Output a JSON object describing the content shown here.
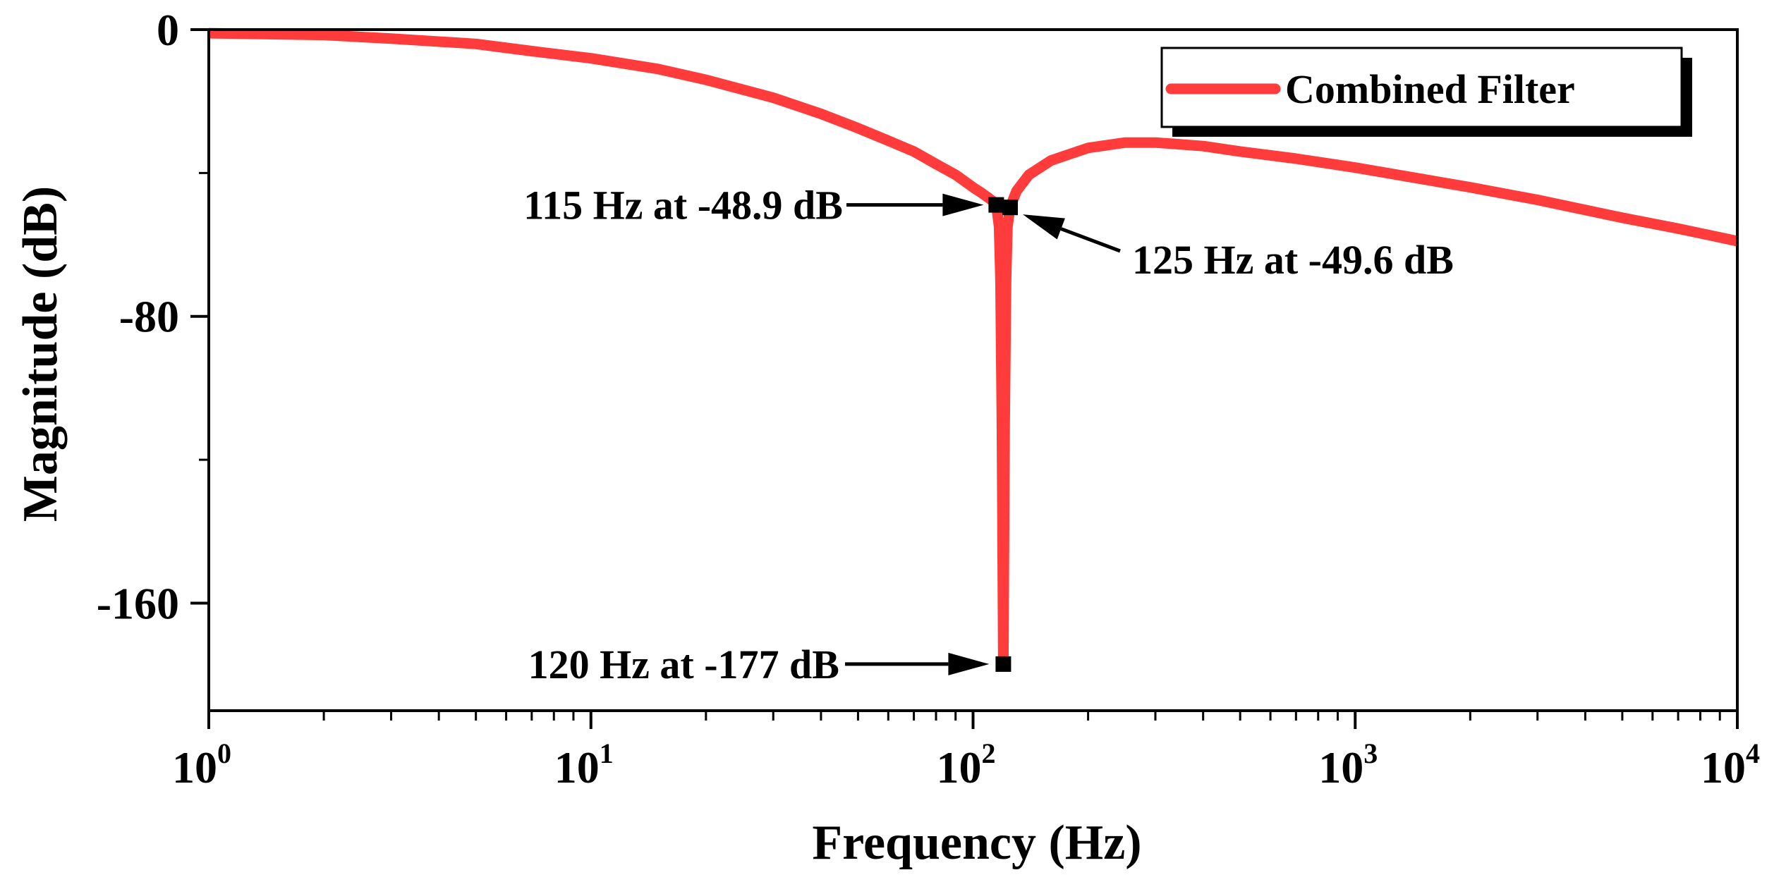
{
  "chart_data": {
    "type": "line",
    "title": "",
    "xlabel": "Frequency (Hz)",
    "ylabel": "Magnitude (dB)",
    "x_scale": "log",
    "xlim": [
      1,
      10000
    ],
    "ylim": [
      -190,
      0
    ],
    "x_ticks": [
      {
        "value": 1,
        "base": "10",
        "exp": "0"
      },
      {
        "value": 10,
        "base": "10",
        "exp": "1"
      },
      {
        "value": 100,
        "base": "10",
        "exp": "2"
      },
      {
        "value": 1000,
        "base": "10",
        "exp": "3"
      },
      {
        "value": 10000,
        "base": "10",
        "exp": "4"
      }
    ],
    "y_ticks": [
      {
        "value": 0,
        "label": "0"
      },
      {
        "value": -80,
        "label": "-80"
      },
      {
        "value": -160,
        "label": "-160"
      }
    ],
    "y_minor_ticks": [
      -40,
      -120
    ],
    "grid": false,
    "legend_position": "top-right",
    "series": [
      {
        "name": "Combined Filter",
        "color": "#ff3b3b",
        "x": [
          1,
          2,
          3,
          5,
          7,
          10,
          15,
          20,
          30,
          40,
          50,
          60,
          70,
          80,
          90,
          100,
          105,
          110,
          113,
          115,
          117,
          118,
          119,
          120,
          121,
          122,
          123,
          125,
          130,
          140,
          160,
          200,
          250,
          300,
          400,
          500,
          700,
          1000,
          2000,
          3000,
          5000,
          7000,
          10000
        ],
        "y": [
          -1,
          -1.5,
          -2.5,
          -4,
          -6,
          -8,
          -11,
          -14,
          -19,
          -23.5,
          -27.5,
          -31,
          -34,
          -37.5,
          -40.5,
          -44,
          -45.5,
          -47,
          -48,
          -48.9,
          -55,
          -70,
          -110,
          -177,
          -110,
          -70,
          -55,
          -49.6,
          -45,
          -40.5,
          -36.5,
          -33,
          -31.5,
          -31.5,
          -32.5,
          -34,
          -36,
          -38.5,
          -44,
          -47.5,
          -52.5,
          -55.5,
          -59
        ]
      }
    ],
    "markers": [
      {
        "x": 115,
        "y": -48.9,
        "label": "115 Hz at -48.9 dB"
      },
      {
        "x": 125,
        "y": -49.6,
        "label": "125 Hz at -49.6 dB"
      },
      {
        "x": 120,
        "y": -177,
        "label": "120 Hz at -177 dB"
      }
    ]
  }
}
